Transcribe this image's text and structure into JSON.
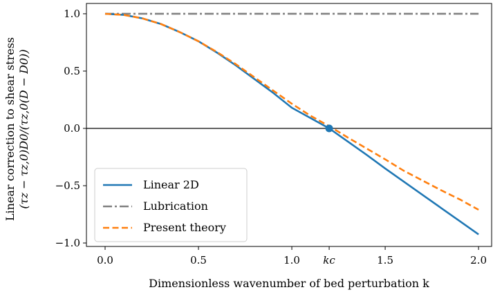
{
  "chart_data": {
    "type": "line",
    "xlabel": "Dimensionless wavenumber of bed perturbation k",
    "ylabel_line1": "Linear correction to shear stress",
    "ylabel_line2": "(τz − τz,0)D0/(τz,0(D − D0))",
    "xlim": [
      -0.1,
      2.07
    ],
    "ylim": [
      -1.03,
      1.09
    ],
    "xticks": [
      0.0,
      0.5,
      1.0,
      1.5,
      2.0
    ],
    "xtick_labels": [
      "0.0",
      "0.5",
      "1.0",
      "1.5",
      "2.0"
    ],
    "extra_xtick": {
      "x": 1.2,
      "label": "kc"
    },
    "yticks": [
      -1.0,
      -0.5,
      0.0,
      0.5,
      1.0
    ],
    "ytick_labels": [
      "−1.0",
      "−0.5",
      "0.0",
      "0.5",
      "1.0"
    ],
    "grid": false,
    "zero_line": true,
    "legend_position": "lower-left",
    "marker": {
      "x": 1.2,
      "y": 0.0,
      "label": "kc",
      "color": "#1f77b4"
    },
    "series": [
      {
        "name": "Linear 2D",
        "color": "#1f77b4",
        "style": "solid",
        "x": [
          0.0,
          0.1,
          0.2,
          0.3,
          0.4,
          0.5,
          0.6,
          0.7,
          0.8,
          0.9,
          1.0,
          1.1,
          1.2,
          1.3,
          1.4,
          1.5,
          1.6,
          1.7,
          1.8,
          1.9,
          2.0
        ],
        "y": [
          1.0,
          0.99,
          0.96,
          0.91,
          0.84,
          0.76,
          0.66,
          0.55,
          0.43,
          0.31,
          0.18,
          0.09,
          0.0,
          -0.115,
          -0.23,
          -0.35,
          -0.465,
          -0.58,
          -0.695,
          -0.81,
          -0.925
        ]
      },
      {
        "name": "Lubrication",
        "color": "#808080",
        "style": "dashdot",
        "x": [
          0.0,
          2.0
        ],
        "y": [
          1.0,
          1.0
        ]
      },
      {
        "name": "Present theory",
        "color": "#ff7f0e",
        "style": "dashed",
        "x": [
          0.0,
          0.1,
          0.2,
          0.3,
          0.4,
          0.5,
          0.6,
          0.7,
          0.8,
          0.9,
          1.0,
          1.1,
          1.2,
          1.3,
          1.4,
          1.5,
          1.6,
          1.7,
          1.8,
          1.9,
          2.0
        ],
        "y": [
          1.0,
          0.99,
          0.96,
          0.91,
          0.84,
          0.76,
          0.665,
          0.56,
          0.445,
          0.33,
          0.215,
          0.11,
          0.02,
          -0.08,
          -0.175,
          -0.27,
          -0.37,
          -0.455,
          -0.54,
          -0.62,
          -0.71
        ]
      }
    ]
  }
}
